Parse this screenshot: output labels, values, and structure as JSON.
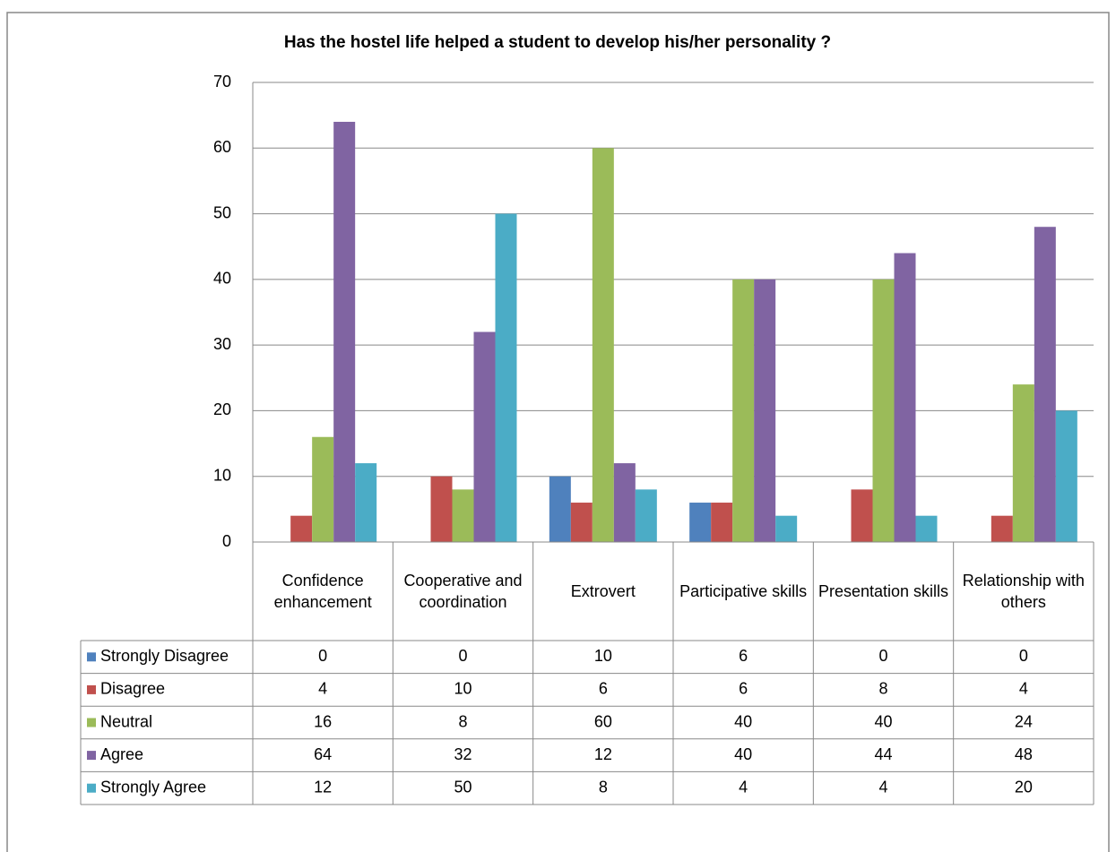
{
  "chart_data": {
    "type": "bar",
    "title": "Has the hostel life helped a student to develop his/her personality ?",
    "categories": [
      "Confidence enhancement",
      "Cooperative and coordination",
      "Extrovert",
      "Participative skills",
      "Presentation skills",
      "Relationship with others"
    ],
    "series": [
      {
        "name": "Strongly Disagree",
        "color": "#4f81bd",
        "values": [
          0,
          0,
          10,
          6,
          0,
          0
        ]
      },
      {
        "name": "Disagree",
        "color": "#c0504d",
        "values": [
          4,
          10,
          6,
          6,
          8,
          4
        ]
      },
      {
        "name": "Neutral",
        "color": "#9bbb59",
        "values": [
          16,
          8,
          60,
          40,
          40,
          24
        ]
      },
      {
        "name": "Agree",
        "color": "#8064a2",
        "values": [
          64,
          32,
          12,
          40,
          44,
          48
        ]
      },
      {
        "name": "Strongly Agree",
        "color": "#4bacc6",
        "values": [
          12,
          50,
          8,
          4,
          4,
          20
        ]
      }
    ],
    "ylim": [
      0,
      70
    ],
    "yticks": [
      0,
      10,
      20,
      30,
      40,
      50,
      60,
      70
    ],
    "grid": true
  }
}
